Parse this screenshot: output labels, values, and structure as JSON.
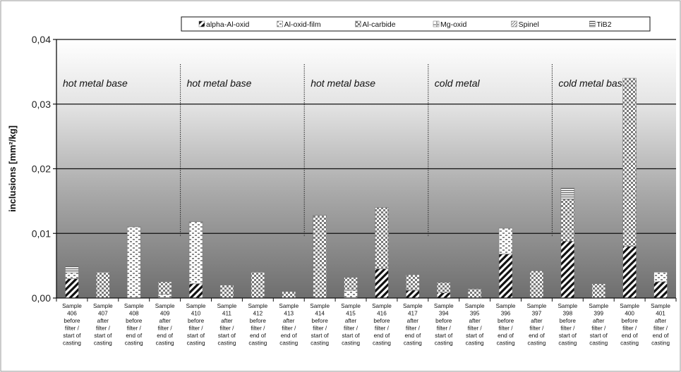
{
  "chart_data": {
    "type": "bar",
    "stacked": true,
    "ylabel": "inclusions [mm²/kg]",
    "ylim": [
      0,
      0.04
    ],
    "yticks": [
      "0,00",
      "0,01",
      "0,02",
      "0,03",
      "0,04"
    ],
    "ytick_values": [
      0,
      0.01,
      0.02,
      0.03,
      0.04
    ],
    "grid": "horizontal",
    "legend_position": "top",
    "categories": [
      [
        "Sample",
        "406",
        "before",
        "filter /",
        "start of",
        "casting"
      ],
      [
        "Sample",
        "407",
        "after",
        "filter /",
        "start of",
        "casting"
      ],
      [
        "Sample",
        "408",
        "before",
        "filter /",
        "end of",
        "casting"
      ],
      [
        "Sample",
        "409",
        "after",
        "filter /",
        "end of",
        "casting"
      ],
      [
        "Sample",
        "410",
        "before",
        "filter /",
        "start of",
        "casting"
      ],
      [
        "Sample",
        "411",
        "after",
        "filter /",
        "start of",
        "casting"
      ],
      [
        "Sample",
        "412",
        "before",
        "filter /",
        "end of",
        "casting"
      ],
      [
        "Sample",
        "413",
        "after",
        "filter /",
        "end of",
        "casting"
      ],
      [
        "Sample",
        "414",
        "before",
        "filter /",
        "start of",
        "casting"
      ],
      [
        "Sample",
        "415",
        "after",
        "filter /",
        "start of",
        "casting"
      ],
      [
        "Sample",
        "416",
        "before",
        "filter /",
        "end of",
        "casting"
      ],
      [
        "Sample",
        "417",
        "after",
        "filter /",
        "end of",
        "casting"
      ],
      [
        "Sample",
        "394",
        "before",
        "filter /",
        "start of",
        "casting"
      ],
      [
        "Sample",
        "395",
        "after",
        "filter /",
        "start of",
        "casting"
      ],
      [
        "Sample",
        "396",
        "before",
        "filter /",
        "end of",
        "casting"
      ],
      [
        "Sample",
        "397",
        "after",
        "filter /",
        "end of",
        "casting"
      ],
      [
        "Sample",
        "398",
        "before",
        "filter /",
        "start of",
        "casting"
      ],
      [
        "Sample",
        "399",
        "after",
        "filter /",
        "start of",
        "casting"
      ],
      [
        "Sample",
        "400",
        "before",
        "filter /",
        "end of",
        "casting"
      ],
      [
        "Sample",
        "401",
        "after",
        "filter /",
        "end of",
        "casting"
      ]
    ],
    "series": [
      {
        "name": "alpha-Al-oxid",
        "pattern": "diagonal",
        "values": [
          0.003,
          0,
          0,
          0,
          0.0022,
          0,
          0,
          0,
          0,
          0,
          0.0045,
          0.0012,
          0.0008,
          0,
          0.0068,
          0,
          0.0088,
          0,
          0.008,
          0.0025
        ]
      },
      {
        "name": "Al-oxid-film",
        "pattern": "bricks",
        "values": [
          0.0009,
          0,
          0.011,
          0.0006,
          0.0096,
          0,
          0,
          0,
          0,
          0.0012,
          0,
          0,
          0,
          0,
          0.004,
          0,
          0,
          0,
          0,
          0.0015
        ]
      },
      {
        "name": "Al-carbide",
        "pattern": "checker",
        "values": [
          0,
          0.004,
          0,
          0.0019,
          0,
          0.002,
          0.004,
          0.001,
          0.0128,
          0.002,
          0.0095,
          0.0024,
          0.0016,
          0.0014,
          0,
          0.0042,
          0.0065,
          0.0022,
          0.026,
          0
        ]
      },
      {
        "name": "Mg-oxid",
        "pattern": "corner",
        "values": [
          0,
          0,
          0,
          0,
          0,
          0,
          0,
          0,
          0,
          0,
          0,
          0,
          0,
          0,
          0,
          0,
          0,
          0,
          0,
          0
        ]
      },
      {
        "name": "Spinel",
        "pattern": "fine-diagonal",
        "values": [
          0,
          0,
          0,
          0,
          0,
          0,
          0,
          0,
          0,
          0,
          0,
          0,
          0,
          0,
          0,
          0,
          0,
          0,
          0,
          0
        ]
      },
      {
        "name": "TiB2",
        "pattern": "horizontal",
        "values": [
          0.001,
          0,
          0,
          0,
          0,
          0,
          0,
          0,
          0,
          0,
          0,
          0,
          0,
          0,
          0,
          0,
          0.0017,
          0,
          0,
          0
        ]
      }
    ],
    "annotations": [
      {
        "text": "hot metal base",
        "start_index": 0
      },
      {
        "text": "hot metal base",
        "start_index": 4
      },
      {
        "text": "hot metal base",
        "start_index": 8
      },
      {
        "text": "cold  metal",
        "start_index": 12
      },
      {
        "text": "cold  metal base",
        "start_index": 16
      }
    ]
  }
}
